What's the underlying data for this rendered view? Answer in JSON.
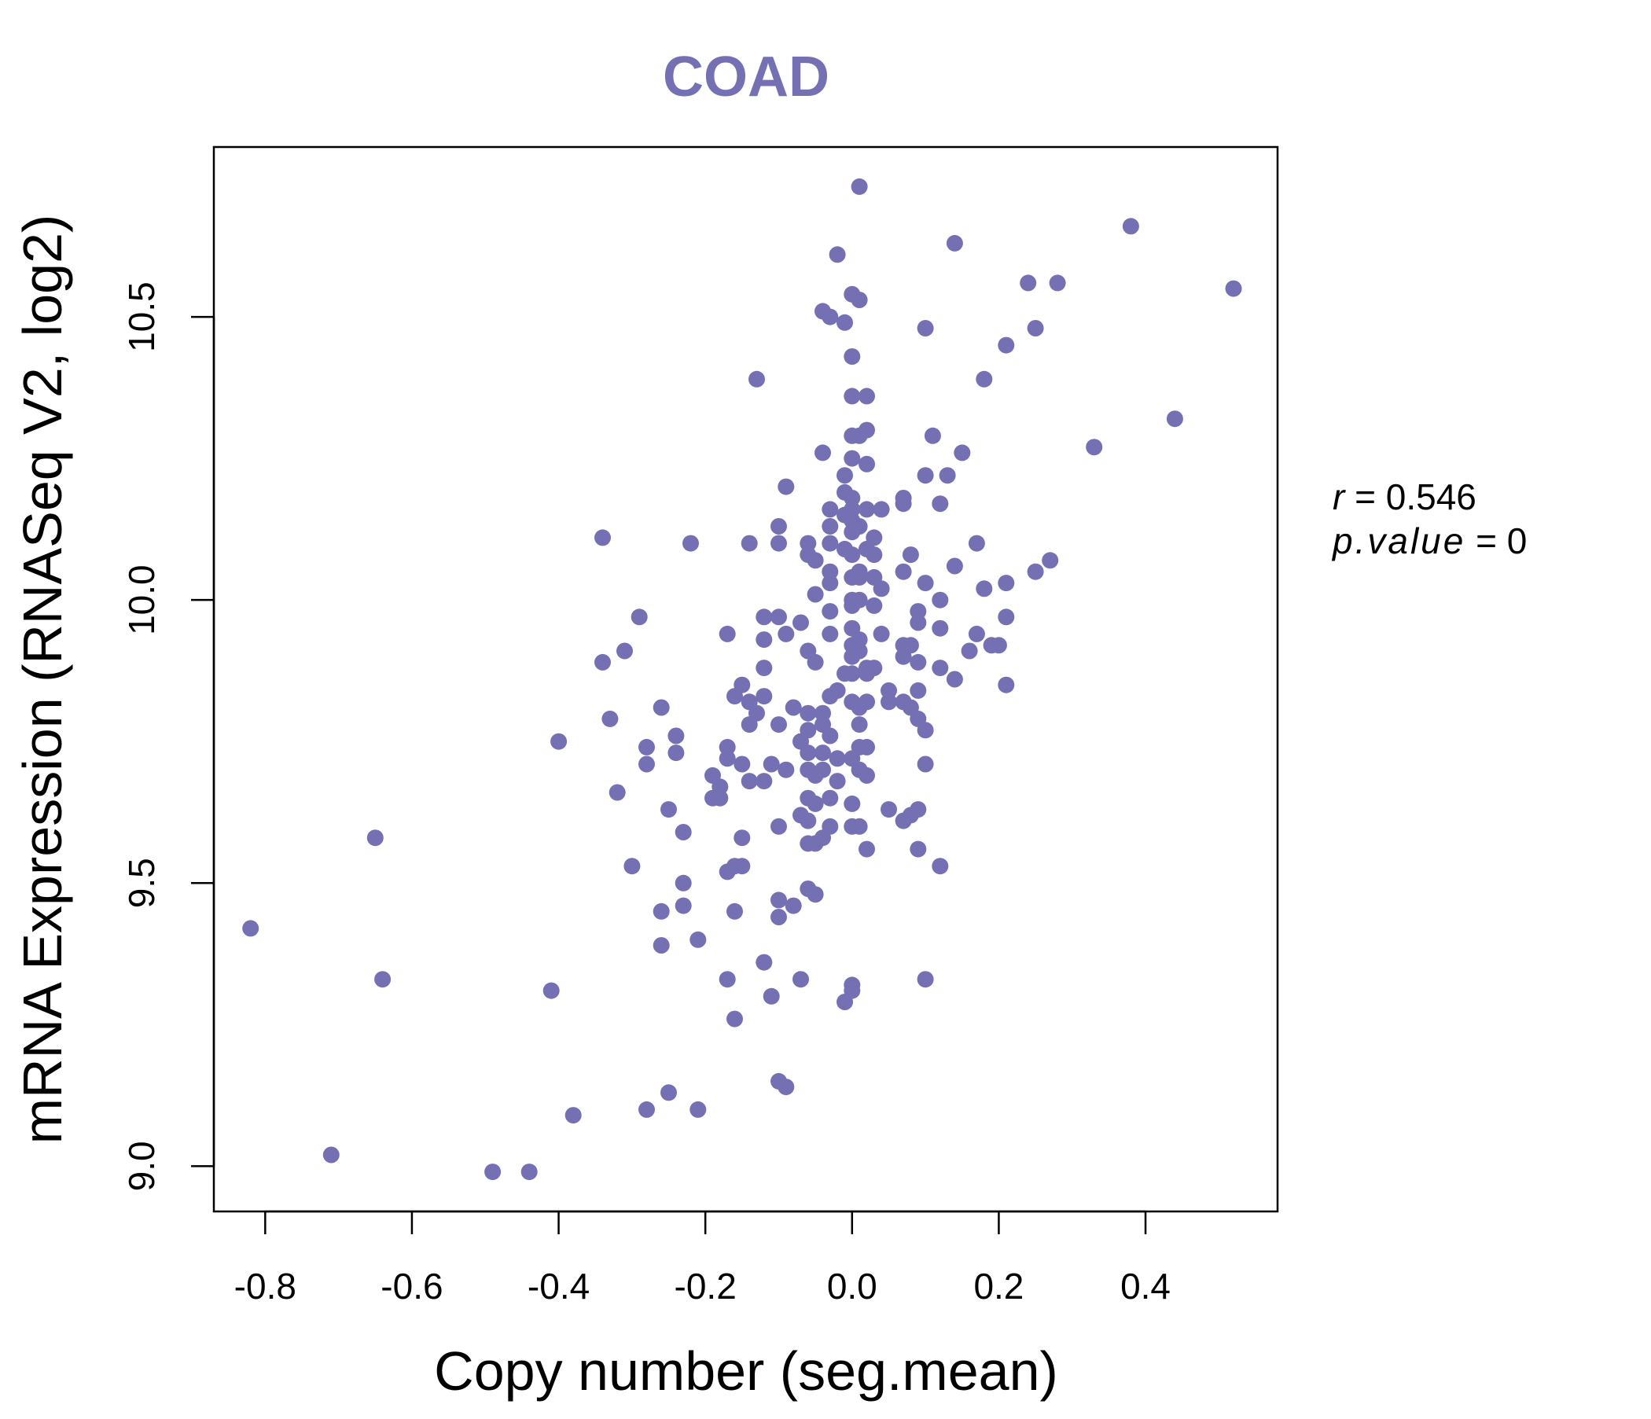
{
  "chart_data": {
    "type": "scatter",
    "title": "COAD",
    "xlabel": "Copy number (seg.mean)",
    "ylabel": "mRNA Expression (RNASeq V2, log2)",
    "xlim": [
      -0.87,
      0.58
    ],
    "ylim": [
      8.92,
      10.8
    ],
    "xticks": [
      -0.8,
      -0.6,
      -0.4,
      -0.2,
      0.0,
      0.2,
      0.4
    ],
    "xtick_labels": [
      "-0.8",
      "-0.6",
      "-0.4",
      "-0.2",
      "0.0",
      "0.2",
      "0.4"
    ],
    "yticks": [
      9.0,
      9.5,
      10.0,
      10.5
    ],
    "ytick_labels": [
      "9.0",
      "9.5",
      "10.0",
      "10.5"
    ],
    "annotation": {
      "r_label": "r",
      "r_value": "0.546",
      "p_label": "p.value",
      "p_value": "0"
    },
    "point_color": "#7570b3",
    "title_color": "#7570b3",
    "grid": false,
    "points": [
      [
        0.01,
        10.73
      ],
      [
        0.38,
        10.66
      ],
      [
        0.14,
        10.63
      ],
      [
        -0.02,
        10.61
      ],
      [
        0.52,
        10.55
      ],
      [
        0.24,
        10.56
      ],
      [
        0.28,
        10.56
      ],
      [
        0.0,
        10.54
      ],
      [
        0.01,
        10.53
      ],
      [
        -0.04,
        10.51
      ],
      [
        -0.03,
        10.5
      ],
      [
        -0.01,
        10.49
      ],
      [
        0.1,
        10.48
      ],
      [
        0.25,
        10.48
      ],
      [
        0.21,
        10.45
      ],
      [
        0.0,
        10.43
      ],
      [
        -0.13,
        10.39
      ],
      [
        0.18,
        10.39
      ],
      [
        0.0,
        10.36
      ],
      [
        0.02,
        10.36
      ],
      [
        0.44,
        10.32
      ],
      [
        0.0,
        10.29
      ],
      [
        0.02,
        10.3
      ],
      [
        0.01,
        10.29
      ],
      [
        0.11,
        10.29
      ],
      [
        0.33,
        10.27
      ],
      [
        -0.04,
        10.26
      ],
      [
        0.15,
        10.26
      ],
      [
        0.0,
        10.25
      ],
      [
        0.02,
        10.24
      ],
      [
        -0.01,
        10.22
      ],
      [
        0.1,
        10.22
      ],
      [
        0.13,
        10.22
      ],
      [
        -0.09,
        10.2
      ],
      [
        -0.01,
        10.19
      ],
      [
        0.0,
        10.18
      ],
      [
        0.07,
        10.18
      ],
      [
        0.07,
        10.17
      ],
      [
        -0.03,
        10.16
      ],
      [
        0.0,
        10.16
      ],
      [
        0.02,
        10.16
      ],
      [
        0.04,
        10.16
      ],
      [
        0.12,
        10.17
      ],
      [
        -0.01,
        10.15
      ],
      [
        0.0,
        10.14
      ],
      [
        -0.03,
        10.13
      ],
      [
        0.01,
        10.13
      ],
      [
        -0.1,
        10.13
      ],
      [
        0.0,
        10.12
      ],
      [
        0.03,
        10.11
      ],
      [
        -0.34,
        10.11
      ],
      [
        -0.22,
        10.1
      ],
      [
        -0.14,
        10.1
      ],
      [
        -0.1,
        10.1
      ],
      [
        0.17,
        10.1
      ],
      [
        -0.06,
        10.1
      ],
      [
        -0.03,
        10.1
      ],
      [
        -0.01,
        10.09
      ],
      [
        0.02,
        10.09
      ],
      [
        0.0,
        10.08
      ],
      [
        0.03,
        10.08
      ],
      [
        0.08,
        10.08
      ],
      [
        -0.06,
        10.08
      ],
      [
        -0.05,
        10.07
      ],
      [
        0.27,
        10.07
      ],
      [
        0.14,
        10.06
      ],
      [
        0.01,
        10.05
      ],
      [
        0.07,
        10.05
      ],
      [
        0.25,
        10.05
      ],
      [
        -0.03,
        10.05
      ],
      [
        0.0,
        10.04
      ],
      [
        0.01,
        10.04
      ],
      [
        0.03,
        10.04
      ],
      [
        0.1,
        10.03
      ],
      [
        -0.03,
        10.03
      ],
      [
        0.21,
        10.03
      ],
      [
        0.04,
        10.02
      ],
      [
        0.18,
        10.02
      ],
      [
        -0.05,
        10.01
      ],
      [
        0.0,
        10.0
      ],
      [
        0.01,
        10.0
      ],
      [
        0.12,
        10.0
      ],
      [
        0.0,
        9.99
      ],
      [
        0.03,
        9.99
      ],
      [
        -0.03,
        9.98
      ],
      [
        0.09,
        9.98
      ],
      [
        -0.29,
        9.97
      ],
      [
        0.21,
        9.97
      ],
      [
        -0.12,
        9.97
      ],
      [
        -0.1,
        9.97
      ],
      [
        -0.07,
        9.96
      ],
      [
        0.09,
        9.96
      ],
      [
        0.0,
        9.95
      ],
      [
        0.12,
        9.95
      ],
      [
        -0.03,
        9.94
      ],
      [
        0.04,
        9.94
      ],
      [
        0.17,
        9.94
      ],
      [
        -0.17,
        9.94
      ],
      [
        -0.09,
        9.94
      ],
      [
        0.01,
        9.93
      ],
      [
        -0.12,
        9.93
      ],
      [
        0.0,
        9.92
      ],
      [
        0.07,
        9.92
      ],
      [
        0.08,
        9.92
      ],
      [
        0.19,
        9.92
      ],
      [
        0.2,
        9.92
      ],
      [
        -0.06,
        9.91
      ],
      [
        0.16,
        9.91
      ],
      [
        0.01,
        9.91
      ],
      [
        -0.31,
        9.91
      ],
      [
        0.0,
        9.9
      ],
      [
        0.07,
        9.9
      ],
      [
        0.09,
        9.89
      ],
      [
        -0.34,
        9.89
      ],
      [
        -0.05,
        9.89
      ],
      [
        0.02,
        9.88
      ],
      [
        -0.12,
        9.88
      ],
      [
        0.03,
        9.88
      ],
      [
        0.12,
        9.88
      ],
      [
        -0.01,
        9.87
      ],
      [
        0.02,
        9.87
      ],
      [
        0.0,
        9.87
      ],
      [
        0.14,
        9.86
      ],
      [
        -0.15,
        9.85
      ],
      [
        0.21,
        9.85
      ],
      [
        0.05,
        9.84
      ],
      [
        -0.02,
        9.84
      ],
      [
        0.09,
        9.84
      ],
      [
        -0.16,
        9.83
      ],
      [
        -0.03,
        9.83
      ],
      [
        -0.12,
        9.83
      ],
      [
        -0.14,
        9.82
      ],
      [
        0.0,
        9.82
      ],
      [
        0.02,
        9.82
      ],
      [
        0.05,
        9.82
      ],
      [
        0.07,
        9.82
      ],
      [
        -0.08,
        9.81
      ],
      [
        -0.26,
        9.81
      ],
      [
        -0.13,
        9.8
      ],
      [
        0.01,
        9.81
      ],
      [
        0.08,
        9.81
      ],
      [
        -0.04,
        9.8
      ],
      [
        -0.06,
        9.8
      ],
      [
        0.09,
        9.79
      ],
      [
        -0.33,
        9.79
      ],
      [
        -0.14,
        9.78
      ],
      [
        -0.1,
        9.78
      ],
      [
        -0.04,
        9.78
      ],
      [
        0.01,
        9.78
      ],
      [
        0.1,
        9.77
      ],
      [
        -0.06,
        9.77
      ],
      [
        -0.03,
        9.76
      ],
      [
        -0.24,
        9.76
      ],
      [
        -0.07,
        9.75
      ],
      [
        -0.4,
        9.75
      ],
      [
        -0.17,
        9.74
      ],
      [
        -0.28,
        9.74
      ],
      [
        0.01,
        9.74
      ],
      [
        0.02,
        9.74
      ],
      [
        -0.24,
        9.73
      ],
      [
        -0.06,
        9.73
      ],
      [
        -0.04,
        9.73
      ],
      [
        -0.02,
        9.72
      ],
      [
        0.0,
        9.72
      ],
      [
        -0.17,
        9.72
      ],
      [
        -0.28,
        9.71
      ],
      [
        0.1,
        9.71
      ],
      [
        -0.15,
        9.71
      ],
      [
        -0.11,
        9.71
      ],
      [
        -0.09,
        9.7
      ],
      [
        -0.06,
        9.7
      ],
      [
        -0.04,
        9.7
      ],
      [
        0.01,
        9.7
      ],
      [
        0.02,
        9.69
      ],
      [
        -0.19,
        9.69
      ],
      [
        -0.05,
        9.69
      ],
      [
        -0.02,
        9.68
      ],
      [
        -0.12,
        9.68
      ],
      [
        -0.14,
        9.68
      ],
      [
        -0.18,
        9.67
      ],
      [
        -0.32,
        9.66
      ],
      [
        -0.06,
        9.65
      ],
      [
        -0.19,
        9.65
      ],
      [
        -0.03,
        9.65
      ],
      [
        -0.18,
        9.65
      ],
      [
        0.0,
        9.64
      ],
      [
        -0.05,
        9.64
      ],
      [
        0.05,
        9.63
      ],
      [
        0.09,
        9.63
      ],
      [
        -0.25,
        9.63
      ],
      [
        -0.07,
        9.62
      ],
      [
        0.08,
        9.62
      ],
      [
        0.07,
        9.61
      ],
      [
        -0.06,
        9.61
      ],
      [
        -0.03,
        9.6
      ],
      [
        -0.1,
        9.6
      ],
      [
        0.0,
        9.6
      ],
      [
        0.01,
        9.6
      ],
      [
        -0.23,
        9.59
      ],
      [
        -0.15,
        9.58
      ],
      [
        -0.04,
        9.58
      ],
      [
        -0.65,
        9.58
      ],
      [
        -0.06,
        9.57
      ],
      [
        -0.05,
        9.57
      ],
      [
        0.09,
        9.56
      ],
      [
        0.02,
        9.56
      ],
      [
        -0.15,
        9.53
      ],
      [
        -0.16,
        9.53
      ],
      [
        -0.17,
        9.52
      ],
      [
        -0.3,
        9.53
      ],
      [
        0.12,
        9.53
      ],
      [
        -0.23,
        9.5
      ],
      [
        -0.06,
        9.49
      ],
      [
        -0.05,
        9.48
      ],
      [
        -0.1,
        9.47
      ],
      [
        -0.08,
        9.46
      ],
      [
        -0.23,
        9.46
      ],
      [
        -0.16,
        9.45
      ],
      [
        -0.26,
        9.45
      ],
      [
        -0.1,
        9.44
      ],
      [
        -0.82,
        9.42
      ],
      [
        -0.21,
        9.4
      ],
      [
        -0.26,
        9.39
      ],
      [
        -0.12,
        9.36
      ],
      [
        -0.17,
        9.33
      ],
      [
        0.1,
        9.33
      ],
      [
        -0.07,
        9.33
      ],
      [
        -0.64,
        9.33
      ],
      [
        0.0,
        9.32
      ],
      [
        0.0,
        9.31
      ],
      [
        -0.41,
        9.31
      ],
      [
        -0.11,
        9.3
      ],
      [
        -0.01,
        9.29
      ],
      [
        -0.16,
        9.26
      ],
      [
        -0.1,
        9.15
      ],
      [
        -0.09,
        9.14
      ],
      [
        -0.25,
        9.13
      ],
      [
        -0.28,
        9.1
      ],
      [
        -0.21,
        9.1
      ],
      [
        -0.38,
        9.09
      ],
      [
        -0.71,
        9.02
      ],
      [
        -0.44,
        8.99
      ],
      [
        -0.49,
        8.99
      ]
    ]
  }
}
